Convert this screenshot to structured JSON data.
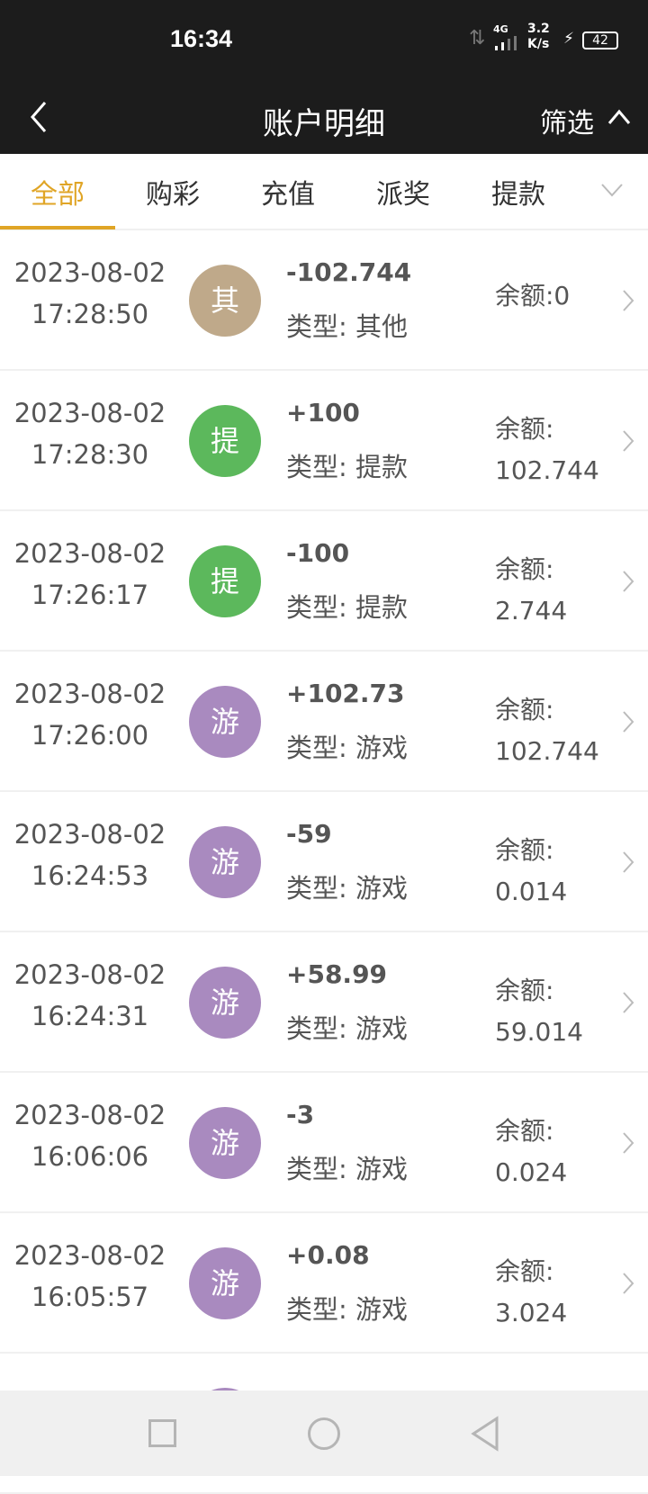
{
  "status_bar": {
    "time": "16:34",
    "network": "4G",
    "speed_value": "3.2",
    "speed_unit": "K/s",
    "battery": "42"
  },
  "header": {
    "title": "账户明细",
    "filter_label": "筛选"
  },
  "tabs": [
    {
      "label": "全部",
      "active": true
    },
    {
      "label": "购彩",
      "active": false
    },
    {
      "label": "充值",
      "active": false
    },
    {
      "label": "派奖",
      "active": false
    },
    {
      "label": "提款",
      "active": false
    }
  ],
  "colors": {
    "accent": "#e0a526",
    "other": "#bfa98a",
    "withdraw": "#5cb85c",
    "game": "#a98abf",
    "header_bg": "#1c1c1c"
  },
  "records": [
    {
      "date": "2023-08-02",
      "time": "17:28:50",
      "badge": "其",
      "color": "#bfa98a",
      "amount": "-102.744",
      "type": "类型: 其他",
      "balance_label": "余额:0",
      "balance_value": ""
    },
    {
      "date": "2023-08-02",
      "time": "17:28:30",
      "badge": "提",
      "color": "#5cb85c",
      "amount": "+100",
      "type": "类型: 提款",
      "balance_label": "余额:",
      "balance_value": "102.744"
    },
    {
      "date": "2023-08-02",
      "time": "17:26:17",
      "badge": "提",
      "color": "#5cb85c",
      "amount": "-100",
      "type": "类型: 提款",
      "balance_label": "余额:",
      "balance_value": "2.744"
    },
    {
      "date": "2023-08-02",
      "time": "17:26:00",
      "badge": "游",
      "color": "#a98abf",
      "amount": "+102.73",
      "type": "类型: 游戏",
      "balance_label": "余额:",
      "balance_value": "102.744"
    },
    {
      "date": "2023-08-02",
      "time": "16:24:53",
      "badge": "游",
      "color": "#a98abf",
      "amount": "-59",
      "type": "类型: 游戏",
      "balance_label": "余额:",
      "balance_value": "0.014"
    },
    {
      "date": "2023-08-02",
      "time": "16:24:31",
      "badge": "游",
      "color": "#a98abf",
      "amount": "+58.99",
      "type": "类型: 游戏",
      "balance_label": "余额:",
      "balance_value": "59.014"
    },
    {
      "date": "2023-08-02",
      "time": "16:06:06",
      "badge": "游",
      "color": "#a98abf",
      "amount": "-3",
      "type": "类型: 游戏",
      "balance_label": "余额:",
      "balance_value": "0.024"
    },
    {
      "date": "2023-08-02",
      "time": "16:05:57",
      "badge": "游",
      "color": "#a98abf",
      "amount": "+0.08",
      "type": "类型: 游戏",
      "balance_label": "余额:",
      "balance_value": "3.024"
    }
  ]
}
